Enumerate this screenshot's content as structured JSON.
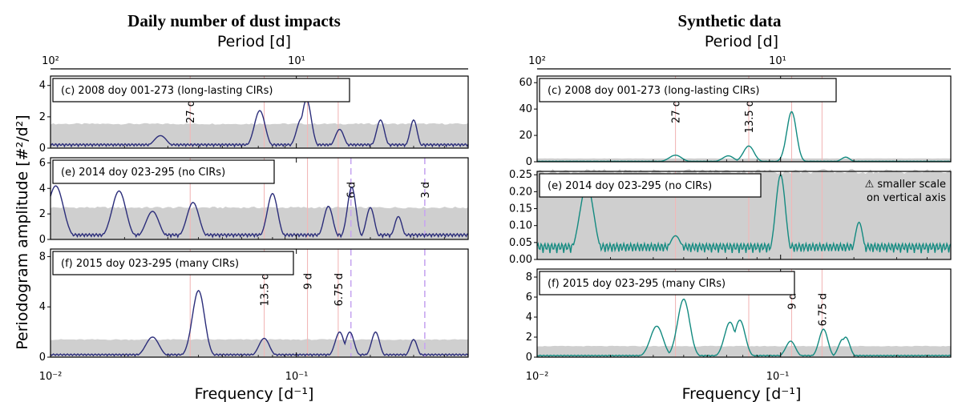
{
  "figure": {
    "left_title": "Daily number of dust impacts",
    "right_title": "Synthetic data",
    "top_xlabel": "Period [d]",
    "bottom_xlabel": "Frequency [d⁻¹]",
    "ylabel": "Periodogram amplitude [#²/d²]",
    "top_ticks": [
      "10²",
      "10¹"
    ],
    "bottom_ticks": [
      "10⁻²",
      "10⁻¹"
    ]
  },
  "colors": {
    "left_line": "#2b2d7a",
    "right_line": "#138a80",
    "noise_band": "#cfcfcf",
    "solid_marker": "#f2b8b8",
    "dashed_marker": "#c7a6f0"
  },
  "chart_data": [
    {
      "type": "line",
      "panel": "left-c",
      "label": "(c) 2008 doy 001-273 (long-lasting CIRs)",
      "x_scale": "log",
      "xlim": [
        0.01,
        0.5
      ],
      "ylim": [
        0,
        4.6
      ],
      "yticks": [
        "0",
        "2",
        "4"
      ],
      "noise_level": 1.55,
      "markers": [
        {
          "period": "27 d",
          "frequency": 0.037,
          "style": "solid",
          "text": "27 d"
        },
        {
          "period": "13.5 d",
          "frequency": 0.074,
          "style": "solid",
          "text": ""
        },
        {
          "period": "9 d",
          "frequency": 0.111,
          "style": "solid",
          "text": ""
        },
        {
          "period": "6.75 d",
          "frequency": 0.148,
          "style": "solid",
          "text": ""
        }
      ],
      "peaks": [
        [
          0.028,
          0.8
        ],
        [
          0.071,
          2.4
        ],
        [
          0.105,
          1.9
        ],
        [
          0.11,
          3.1
        ],
        [
          0.15,
          1.2
        ],
        [
          0.22,
          1.8
        ],
        [
          0.3,
          1.8
        ]
      ]
    },
    {
      "type": "line",
      "panel": "left-e",
      "label": "(e) 2014 doy 023-295 (no CIRs)",
      "x_scale": "log",
      "xlim": [
        0.01,
        0.5
      ],
      "ylim": [
        0,
        6.4
      ],
      "yticks": [
        "0",
        "2",
        "4",
        "6"
      ],
      "noise_level": 2.5,
      "markers": [
        {
          "period": "27 d",
          "frequency": 0.037,
          "style": "solid",
          "text": ""
        },
        {
          "period": "13.5 d",
          "frequency": 0.074,
          "style": "solid",
          "text": ""
        },
        {
          "period": "9 d",
          "frequency": 0.111,
          "style": "solid",
          "text": ""
        },
        {
          "period": "6.75 d",
          "frequency": 0.148,
          "style": "solid",
          "text": ""
        },
        {
          "period": "6 d",
          "frequency": 0.1667,
          "style": "dashed",
          "text": "6 d"
        },
        {
          "period": "3 d",
          "frequency": 0.333,
          "style": "dashed",
          "text": "3 d"
        }
      ],
      "peaks": [
        [
          0.0105,
          4.2
        ],
        [
          0.019,
          3.8
        ],
        [
          0.026,
          2.2
        ],
        [
          0.038,
          2.9
        ],
        [
          0.08,
          3.6
        ],
        [
          0.135,
          2.6
        ],
        [
          0.168,
          4.1
        ],
        [
          0.2,
          2.5
        ],
        [
          0.26,
          1.8
        ]
      ]
    },
    {
      "type": "line",
      "panel": "left-f",
      "label": "(f) 2015 doy 023-295 (many CIRs)",
      "x_scale": "log",
      "xlim": [
        0.01,
        0.5
      ],
      "ylim": [
        0,
        8.6
      ],
      "yticks": [
        "0",
        "4",
        "8"
      ],
      "noise_level": 1.4,
      "markers": [
        {
          "period": "27 d",
          "frequency": 0.037,
          "style": "solid",
          "text": ""
        },
        {
          "period": "13.5 d",
          "frequency": 0.074,
          "style": "solid",
          "text": "13.5 d"
        },
        {
          "period": "9 d",
          "frequency": 0.111,
          "style": "solid",
          "text": "9 d"
        },
        {
          "period": "6.75 d",
          "frequency": 0.148,
          "style": "solid",
          "text": "6.75 d"
        },
        {
          "period": "6 d",
          "frequency": 0.1667,
          "style": "dashed",
          "text": ""
        },
        {
          "period": "3 d",
          "frequency": 0.333,
          "style": "dashed",
          "text": ""
        }
      ],
      "peaks": [
        [
          0.026,
          1.6
        ],
        [
          0.04,
          5.3
        ],
        [
          0.074,
          1.5
        ],
        [
          0.15,
          2.0
        ],
        [
          0.165,
          2.0
        ],
        [
          0.21,
          2.0
        ],
        [
          0.3,
          1.4
        ]
      ]
    },
    {
      "type": "line",
      "panel": "right-c",
      "label": "(c) 2008 doy 001-273 (long-lasting CIRs)",
      "x_scale": "log",
      "xlim": [
        0.01,
        0.5
      ],
      "ylim": [
        0,
        65
      ],
      "yticks": [
        "0",
        "20",
        "40",
        "60"
      ],
      "noise_level": 2.5,
      "markers": [
        {
          "period": "27 d",
          "frequency": 0.037,
          "style": "solid",
          "text": "27 d"
        },
        {
          "period": "13.5 d",
          "frequency": 0.074,
          "style": "solid",
          "text": "13.5 d"
        },
        {
          "period": "9 d",
          "frequency": 0.111,
          "style": "solid",
          "text": ""
        },
        {
          "period": "6.75 d",
          "frequency": 0.148,
          "style": "solid",
          "text": ""
        }
      ],
      "peaks": [
        [
          0.037,
          5
        ],
        [
          0.061,
          4.5
        ],
        [
          0.074,
          12
        ],
        [
          0.111,
          38
        ],
        [
          0.185,
          3.5
        ]
      ]
    },
    {
      "type": "line",
      "panel": "right-e",
      "label": "(e) 2014 doy 023-295 (no CIRs)",
      "note": "⚠ smaller scale\non vertical axis",
      "x_scale": "log",
      "xlim": [
        0.01,
        0.5
      ],
      "ylim": [
        0,
        0.26
      ],
      "yticks": [
        "0.00",
        "0.05",
        "0.10",
        "0.15",
        "0.20",
        "0.25"
      ],
      "noise_level": 0.26,
      "markers": [
        {
          "period": "27 d",
          "frequency": 0.037,
          "style": "solid",
          "text": ""
        },
        {
          "period": "13.5 d",
          "frequency": 0.074,
          "style": "solid",
          "text": ""
        },
        {
          "period": "9 d",
          "frequency": 0.111,
          "style": "solid",
          "text": ""
        },
        {
          "period": "6.75 d",
          "frequency": 0.148,
          "style": "solid",
          "text": ""
        }
      ],
      "peaks": [
        [
          0.016,
          0.22
        ],
        [
          0.037,
          0.07
        ],
        [
          0.1,
          0.25
        ],
        [
          0.21,
          0.11
        ]
      ]
    },
    {
      "type": "line",
      "panel": "right-f",
      "label": "(f) 2015 doy 023-295 (many CIRs)",
      "x_scale": "log",
      "xlim": [
        0.01,
        0.5
      ],
      "ylim": [
        0,
        8.8
      ],
      "yticks": [
        "0",
        "2",
        "4",
        "6",
        "8"
      ],
      "noise_level": 1.1,
      "markers": [
        {
          "period": "27 d",
          "frequency": 0.037,
          "style": "solid",
          "text": ""
        },
        {
          "period": "13.5 d",
          "frequency": 0.074,
          "style": "solid",
          "text": ""
        },
        {
          "period": "9 d",
          "frequency": 0.111,
          "style": "solid",
          "text": "9 d"
        },
        {
          "period": "6.75 d",
          "frequency": 0.148,
          "style": "solid",
          "text": "6.75 d"
        }
      ],
      "peaks": [
        [
          0.031,
          3.1
        ],
        [
          0.04,
          5.8
        ],
        [
          0.062,
          3.5
        ],
        [
          0.068,
          3.7
        ],
        [
          0.11,
          1.6
        ],
        [
          0.15,
          2.8
        ],
        [
          0.18,
          1.8
        ],
        [
          0.185,
          2.0
        ]
      ]
    }
  ]
}
